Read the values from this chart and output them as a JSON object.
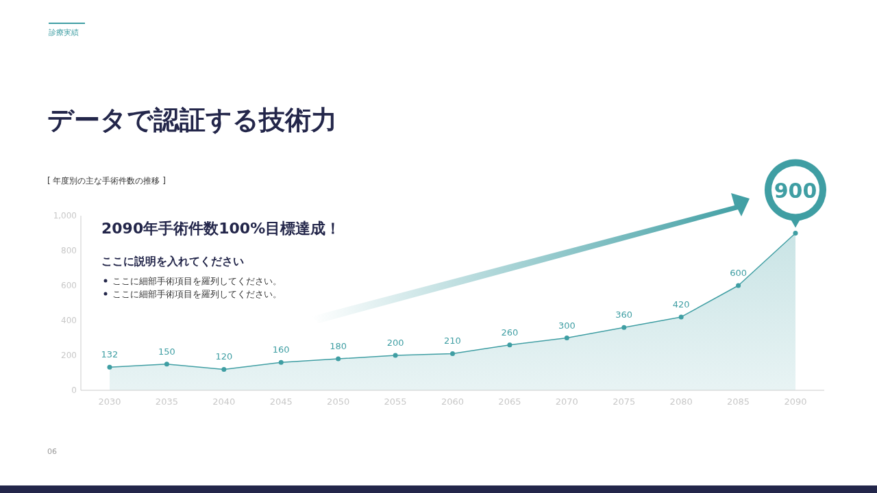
{
  "chart_data": {
    "type": "area",
    "title": "データで認証する技術力",
    "subtitle": "[ 年度別の主な手術件数の推移 ]",
    "categories": [
      "2030",
      "2035",
      "2040",
      "2045",
      "2050",
      "2055",
      "2060",
      "2065",
      "2070",
      "2075",
      "2080",
      "2085",
      "2090"
    ],
    "series": [
      {
        "color": "#3f9ea3",
        "values": [
          132,
          150,
          120,
          160,
          180,
          200,
          210,
          260,
          300,
          360,
          420,
          600,
          900
        ]
      }
    ],
    "ylim": [
      0,
      1000
    ],
    "yticks": [
      0,
      200,
      400,
      600,
      800,
      {
        "value": 1000,
        "label": "1,000"
      }
    ],
    "grid": false,
    "marker": "circle",
    "line_style": "solid",
    "data_labels": true,
    "annotations": [
      "診療実績",
      "2090年手術件数100%目標達成！",
      "ここに説明を入れてください",
      "ここに細部手術項目を羅列してください。",
      "ここに細部手術項目を羅列してください。",
      "06"
    ]
  }
}
